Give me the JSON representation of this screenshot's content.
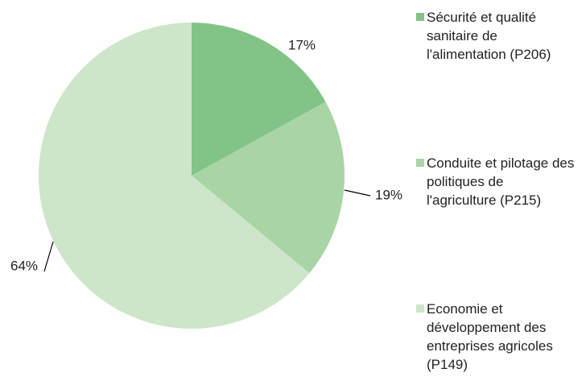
{
  "chart_data": {
    "type": "pie",
    "categories": [
      "Sécurité et qualité sanitaire de l'alimentation (P206)",
      "Conduite et pilotage des politiques de l'agriculture (P215)",
      "Economie et développement des entreprises agricoles (P149)"
    ],
    "values": [
      17,
      19,
      64
    ],
    "value_labels": [
      "17%",
      "19%",
      "64%"
    ],
    "colors": [
      "#82c486",
      "#a9d5a6",
      "#cde6c9"
    ],
    "legend": "right"
  }
}
